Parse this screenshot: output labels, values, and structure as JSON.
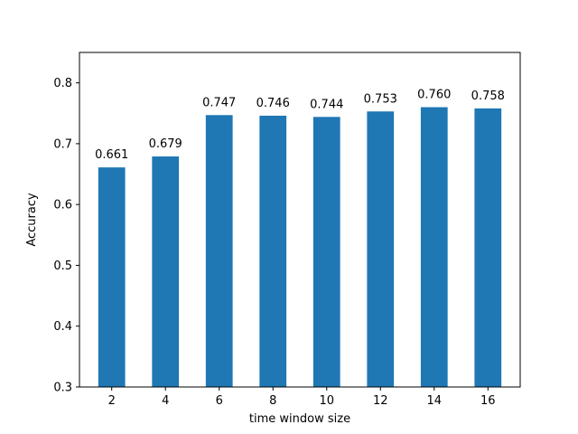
{
  "chart_data": {
    "type": "bar",
    "categories": [
      "2",
      "4",
      "6",
      "8",
      "10",
      "12",
      "14",
      "16"
    ],
    "values": [
      0.661,
      0.679,
      0.747,
      0.746,
      0.744,
      0.753,
      0.76,
      0.758
    ],
    "value_labels": [
      "0.661",
      "0.679",
      "0.747",
      "0.746",
      "0.744",
      "0.753",
      "0.760",
      "0.758"
    ],
    "title": "",
    "xlabel": "time window size",
    "ylabel": "Accuracy",
    "ylim": [
      0.3,
      0.85
    ],
    "yticks": [
      0.3,
      0.4,
      0.5,
      0.6,
      0.7,
      0.8
    ],
    "ytick_labels": [
      "0.3",
      "0.4",
      "0.5",
      "0.6",
      "0.7",
      "0.8"
    ],
    "grid": false,
    "bar_color": "#1f77b4"
  }
}
